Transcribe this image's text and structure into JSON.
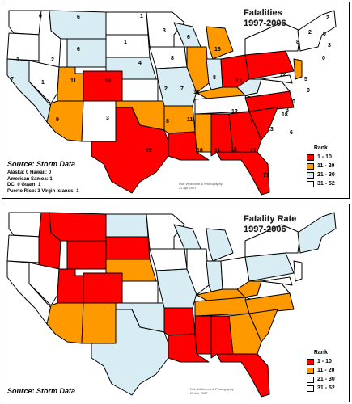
{
  "colors": {
    "rank_1_10": "#ff0000",
    "rank_11_20": "#ff9900",
    "rank_21_30": "#d7ecf3",
    "rank_31_52": "#ffffff"
  },
  "fatalities_map": {
    "title_line1": "Fatalities",
    "title_line2": "1997-2006",
    "source": "Source: Storm Data",
    "notes": [
      "Alaska: 0 Hawaii: 0",
      "American Samoa: 1",
      "DC: 0 Guam: 1",
      "Puerto Rico: 3 Virgin Islands: 1"
    ],
    "credit_line1": "Rob Whitcomb & Photography",
    "credit_line2": "22 Apr 2007",
    "legend": {
      "title": "Rank",
      "items": [
        "1 - 10",
        "11 - 20",
        "21 - 30",
        "31 - 52"
      ]
    },
    "state_values": [
      {
        "state": "WA",
        "value": "0"
      },
      {
        "state": "ID",
        "value": "2"
      },
      {
        "state": "MT",
        "value": "6"
      },
      {
        "state": "ND",
        "value": "1"
      },
      {
        "state": "MN",
        "value": "3"
      },
      {
        "state": "OR",
        "value": "1"
      },
      {
        "state": "WY",
        "value": "6"
      },
      {
        "state": "SD",
        "value": "1"
      },
      {
        "state": "NE",
        "value": "4"
      },
      {
        "state": "IA",
        "value": "8"
      },
      {
        "state": "WI",
        "value": "6"
      },
      {
        "state": "MI",
        "value": "16"
      },
      {
        "state": "NV",
        "value": "1"
      },
      {
        "state": "CA",
        "value": "7"
      },
      {
        "state": "UT",
        "value": "11"
      },
      {
        "state": "CO",
        "value": "30"
      },
      {
        "state": "KS",
        "value": "2"
      },
      {
        "state": "MO",
        "value": "7"
      },
      {
        "state": "IL",
        "value": "11"
      },
      {
        "state": "IN",
        "value": "8"
      },
      {
        "state": "OH",
        "value": "13"
      },
      {
        "state": "PA",
        "value": "12"
      },
      {
        "state": "NY",
        "value": "8"
      },
      {
        "state": "VT",
        "value": "2"
      },
      {
        "state": "NH",
        "value": "0"
      },
      {
        "state": "ME",
        "value": "2"
      },
      {
        "state": "MA",
        "value": "3"
      },
      {
        "state": "CT",
        "value": "0"
      },
      {
        "state": "NJ",
        "value": "5"
      },
      {
        "state": "DE",
        "value": "0"
      },
      {
        "state": "MD",
        "value": "0"
      },
      {
        "state": "WV",
        "value": "3"
      },
      {
        "state": "VA",
        "value": "6"
      },
      {
        "state": "AZ",
        "value": "9"
      },
      {
        "state": "NM",
        "value": "3"
      },
      {
        "state": "OK",
        "value": "8"
      },
      {
        "state": "AR",
        "value": "11"
      },
      {
        "state": "KY",
        "value": "12"
      },
      {
        "state": "TN",
        "value": "7"
      },
      {
        "state": "NC",
        "value": "18"
      },
      {
        "state": "SC",
        "value": "13"
      },
      {
        "state": "TX",
        "value": "25"
      },
      {
        "state": "LA",
        "value": "16"
      },
      {
        "state": "MS",
        "value": "11"
      },
      {
        "state": "AL",
        "value": "18"
      },
      {
        "state": "GA",
        "value": "21"
      },
      {
        "state": "FL",
        "value": "71"
      }
    ]
  },
  "rate_map": {
    "title_line1": "Fatality Rate",
    "title_line2": "1997-2006",
    "source": "Source: Storm Data",
    "credit_line1": "Rob Whitcomb & Photography",
    "credit_line2": "22 Apr 2007",
    "legend": {
      "title": "Rank",
      "items": [
        "1 - 10",
        "11 - 20",
        "21 - 30",
        "31 - 52"
      ]
    }
  }
}
